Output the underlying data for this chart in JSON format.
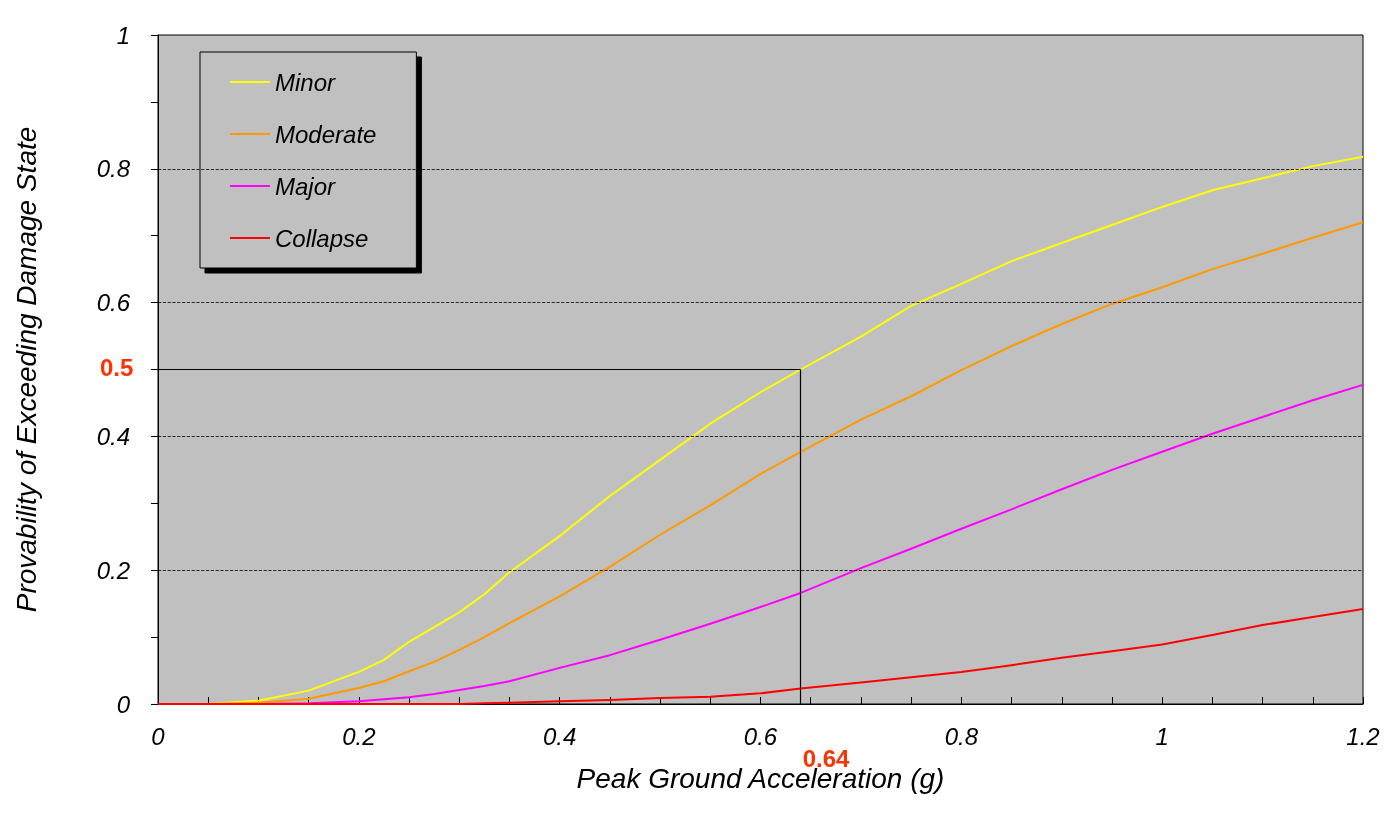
{
  "chart_data": {
    "type": "line",
    "xlabel": "Peak Ground Acceleration (g)",
    "ylabel": "Provability of Exceeding Damage State",
    "x": [
      0,
      0.05,
      0.1,
      0.15,
      0.2,
      0.225,
      0.25,
      0.275,
      0.3,
      0.325,
      0.35,
      0.4,
      0.45,
      0.5,
      0.55,
      0.6,
      0.64,
      0.7,
      0.75,
      0.8,
      0.85,
      0.9,
      0.95,
      1.0,
      1.05,
      1.1,
      1.15,
      1.2
    ],
    "series": [
      {
        "name": "Minor",
        "color": "#ffff00",
        "values": [
          0,
          0,
          0.005,
          0.02,
          0.048,
          0.066,
          0.093,
          0.115,
          0.137,
          0.164,
          0.197,
          0.251,
          0.311,
          0.365,
          0.419,
          0.466,
          0.5,
          0.549,
          0.595,
          0.628,
          0.662,
          0.689,
          0.716,
          0.743,
          0.768,
          0.786,
          0.804,
          0.818
        ]
      },
      {
        "name": "Moderate",
        "color": "#ff9900",
        "values": [
          0,
          0,
          0.002,
          0.008,
          0.024,
          0.034,
          0.049,
          0.063,
          0.081,
          0.1,
          0.121,
          0.161,
          0.205,
          0.253,
          0.297,
          0.344,
          0.377,
          0.425,
          0.46,
          0.499,
          0.535,
          0.568,
          0.598,
          0.623,
          0.65,
          0.673,
          0.697,
          0.72
        ]
      },
      {
        "name": "Major",
        "color": "#ff00ff",
        "values": [
          0,
          0,
          0,
          0.001,
          0.004,
          0.007,
          0.01,
          0.015,
          0.021,
          0.027,
          0.034,
          0.054,
          0.073,
          0.096,
          0.12,
          0.145,
          0.166,
          0.203,
          0.232,
          0.262,
          0.291,
          0.321,
          0.35,
          0.377,
          0.404,
          0.429,
          0.454,
          0.477
        ]
      },
      {
        "name": "Collapse",
        "color": "#ff0000",
        "values": [
          0,
          0,
          0,
          0,
          0,
          0,
          0,
          0,
          0,
          0.001,
          0.002,
          0.004,
          0.006,
          0.009,
          0.011,
          0.016,
          0.023,
          0.032,
          0.04,
          0.048,
          0.058,
          0.069,
          0.079,
          0.089,
          0.103,
          0.118,
          0.13,
          0.142
        ]
      }
    ],
    "xlim": [
      0,
      1.2
    ],
    "ylim": [
      0,
      1
    ],
    "xticks": [
      0,
      {
        "value": 0.05,
        "label": null
      },
      {
        "value": 0.1,
        "label": null
      },
      {
        "value": 0.15,
        "label": null
      },
      0.2,
      {
        "value": 0.25,
        "label": null
      },
      {
        "value": 0.3,
        "label": null
      },
      {
        "value": 0.35,
        "label": null
      },
      0.4,
      {
        "value": 0.45,
        "label": null
      },
      {
        "value": 0.5,
        "label": null
      },
      {
        "value": 0.55,
        "label": null
      },
      0.6,
      {
        "value": 0.65,
        "label": null
      },
      {
        "value": 0.7,
        "label": null
      },
      {
        "value": 0.75,
        "label": null
      },
      0.8,
      {
        "value": 0.85,
        "label": null
      },
      {
        "value": 0.9,
        "label": null
      },
      {
        "value": 0.95,
        "label": null
      },
      1,
      {
        "value": 1.05,
        "label": null
      },
      {
        "value": 1.1,
        "label": null
      },
      {
        "value": 1.15,
        "label": null
      },
      1.2
    ],
    "yticks": [
      0,
      {
        "value": 0.1,
        "label": null
      },
      0.2,
      {
        "value": 0.3,
        "label": null
      },
      0.4,
      {
        "value": 0.5,
        "label": null
      },
      0.6,
      {
        "value": 0.7,
        "label": null
      },
      0.8,
      {
        "value": 0.9,
        "label": null
      },
      1
    ],
    "grid": "y",
    "legend": "top left",
    "marker": "none",
    "line_style": "solid",
    "ref_lines": [
      {
        "axis": "y",
        "value": 0.5,
        "label": "0.5",
        "color": "#000000"
      },
      {
        "axis": "x",
        "value": 0.64,
        "label": "0.64",
        "color": "#000000"
      }
    ]
  }
}
